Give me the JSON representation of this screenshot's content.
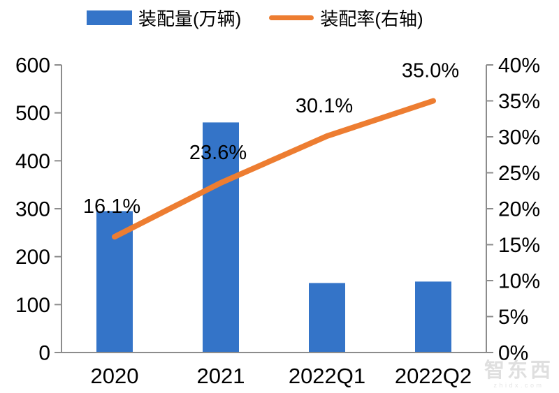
{
  "page": {
    "background": "#FFFFFF"
  },
  "legend": {
    "items": [
      {
        "label": "装配量(万辆)",
        "swatch": "bar",
        "color": "#3474C8"
      },
      {
        "label": "装配率(右轴)",
        "swatch": "line",
        "color": "#ED7D31"
      }
    ]
  },
  "chart_data": {
    "type": "combo-bar-line",
    "title": "",
    "categories": [
      "2020",
      "2021",
      "2022Q1",
      "2022Q2"
    ],
    "series": [
      {
        "name": "装配量(万辆)",
        "type": "bar",
        "axis": "left",
        "color": "#3474C8",
        "values": [
          295,
          480,
          145,
          148
        ]
      },
      {
        "name": "装配率(右轴)",
        "type": "line",
        "axis": "right",
        "color": "#ED7D31",
        "values": [
          16.1,
          23.6,
          30.1,
          35.0
        ],
        "point_labels": [
          "16.1%",
          "23.6%",
          "30.1%",
          "35.0%"
        ]
      }
    ],
    "left_axis": {
      "min": 0,
      "max": 600,
      "step": 100,
      "tick_labels": [
        "0",
        "100",
        "200",
        "300",
        "400",
        "500",
        "600"
      ]
    },
    "right_axis": {
      "min": 0,
      "max": 40,
      "step": 5,
      "tick_labels": [
        "0%",
        "5%",
        "10%",
        "15%",
        "20%",
        "25%",
        "30%",
        "35%",
        "40%"
      ]
    },
    "grid": false,
    "legend_position": "top"
  },
  "watermark": {
    "text": "智东西",
    "subtext": "zhidx.com"
  },
  "colors": {
    "bar": "#3474C8",
    "line": "#ED7D31",
    "axis": "#8C8C8C",
    "text": "#000000",
    "watermark": "#DFDFDF"
  }
}
